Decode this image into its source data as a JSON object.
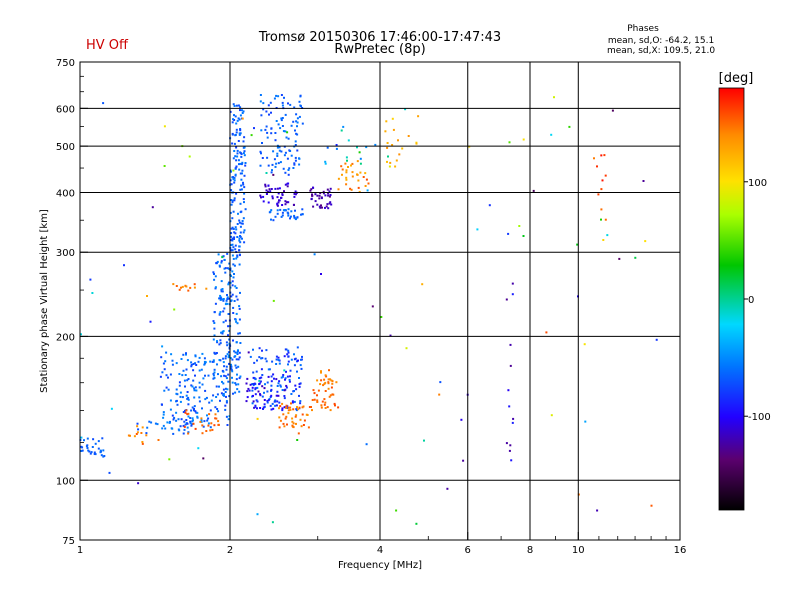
{
  "header": {
    "status": "HV Off",
    "status_color": "#cc0000",
    "title_line1": "Tromsø 20150306 17:46:00-17:47:43",
    "title_line2": "RwPretec (8p)",
    "phase_title": "Phases",
    "phase_o": "mean, sd,O: -64.2, 15.1",
    "phase_x": "mean, sd,X: 109.5, 21.0"
  },
  "colorbar": {
    "label": "[deg]",
    "range": [
      -180,
      180
    ],
    "ticks": [
      100,
      0,
      -100
    ],
    "tick_labels": [
      "100",
      "0",
      "-100"
    ]
  },
  "chart_data": {
    "type": "scatter",
    "xlabel": "Frequency [MHz]",
    "ylabel": "Stationary phase Virtual Height [km]",
    "xscale": "log",
    "yscale": "log",
    "xlim": [
      1,
      16
    ],
    "ylim": [
      75,
      750
    ],
    "xticks": [
      1,
      2,
      4,
      6,
      8,
      10,
      16
    ],
    "xtick_labels": [
      "1",
      "2",
      "4",
      "6",
      "8",
      "10",
      "16"
    ],
    "yticks": [
      75,
      100,
      200,
      300,
      400,
      500,
      600,
      750
    ],
    "ytick_labels": [
      "75",
      "100",
      "200",
      "300",
      "400",
      "500",
      "600",
      "750"
    ],
    "grid": true,
    "color_value": "phase",
    "clusters": [
      {
        "x_range": [
          1.0,
          1.12
        ],
        "y_range": [
          112,
          123
        ],
        "phase": [
          -75,
          -60
        ],
        "count": 30
      },
      {
        "x_range": [
          1.3,
          1.7
        ],
        "y_range": [
          125,
          135
        ],
        "phase": [
          -80,
          -55
        ],
        "count": 25
      },
      {
        "x_range": [
          1.25,
          1.45
        ],
        "y_range": [
          118,
          130
        ],
        "phase": [
          130,
          160
        ],
        "count": 12
      },
      {
        "x_range": [
          1.45,
          2.0
        ],
        "y_range": [
          128,
          185
        ],
        "phase": [
          -80,
          -50
        ],
        "count": 180
      },
      {
        "x_range": [
          1.6,
          1.9
        ],
        "y_range": [
          125,
          140
        ],
        "phase": [
          140,
          165
        ],
        "count": 25
      },
      {
        "x_range": [
          1.5,
          1.8
        ],
        "y_range": [
          248,
          258
        ],
        "phase": [
          130,
          160
        ],
        "count": 12
      },
      {
        "x_range": [
          1.85,
          2.1
        ],
        "y_range": [
          150,
          300
        ],
        "phase": [
          -80,
          -50
        ],
        "count": 200
      },
      {
        "x_range": [
          2.0,
          2.15
        ],
        "y_range": [
          300,
          620
        ],
        "phase": [
          -80,
          -55
        ],
        "count": 160
      },
      {
        "x_range": [
          2.2,
          2.8
        ],
        "y_range": [
          140,
          190
        ],
        "phase": [
          -95,
          -55
        ],
        "count": 140
      },
      {
        "x_range": [
          2.15,
          2.6
        ],
        "y_range": [
          140,
          165
        ],
        "phase": [
          -120,
          -90
        ],
        "count": 40
      },
      {
        "x_range": [
          2.5,
          2.9
        ],
        "y_range": [
          125,
          145
        ],
        "phase": [
          130,
          160
        ],
        "count": 45
      },
      {
        "x_range": [
          2.9,
          3.3
        ],
        "y_range": [
          140,
          170
        ],
        "phase": [
          135,
          160
        ],
        "count": 50
      },
      {
        "x_range": [
          2.3,
          2.8
        ],
        "y_range": [
          430,
          640
        ],
        "phase": [
          -80,
          -55
        ],
        "count": 110
      },
      {
        "x_range": [
          2.4,
          2.8
        ],
        "y_range": [
          350,
          370
        ],
        "phase": [
          -75,
          -55
        ],
        "count": 35
      },
      {
        "x_range": [
          2.3,
          2.75
        ],
        "y_range": [
          375,
          420
        ],
        "phase": [
          -125,
          -100
        ],
        "count": 50
      },
      {
        "x_range": [
          2.9,
          3.2
        ],
        "y_range": [
          370,
          410
        ],
        "phase": [
          -135,
          -110
        ],
        "count": 40
      },
      {
        "x_range": [
          3.3,
          3.8
        ],
        "y_range": [
          400,
          470
        ],
        "phase": [
          120,
          160
        ],
        "count": 30
      },
      {
        "x_range": [
          4.1,
          4.8
        ],
        "y_range": [
          450,
          580
        ],
        "phase": [
          105,
          140
        ],
        "count": 18
      },
      {
        "x_range": [
          3.0,
          4.3
        ],
        "y_range": [
          450,
          560
        ],
        "phase": [
          -70,
          10
        ],
        "count": 14
      },
      {
        "x_range": [
          1.0,
          14.5
        ],
        "y_range": [
          80,
          640
        ],
        "phase": [
          -150,
          160
        ],
        "count": 90
      },
      {
        "x_range": [
          7.1,
          7.4
        ],
        "y_range": [
          85,
          330
        ],
        "phase": [
          -130,
          -80
        ],
        "count": 14
      },
      {
        "x_range": [
          10.6,
          11.6
        ],
        "y_range": [
          340,
          480
        ],
        "phase": [
          140,
          175
        ],
        "count": 10
      }
    ]
  }
}
